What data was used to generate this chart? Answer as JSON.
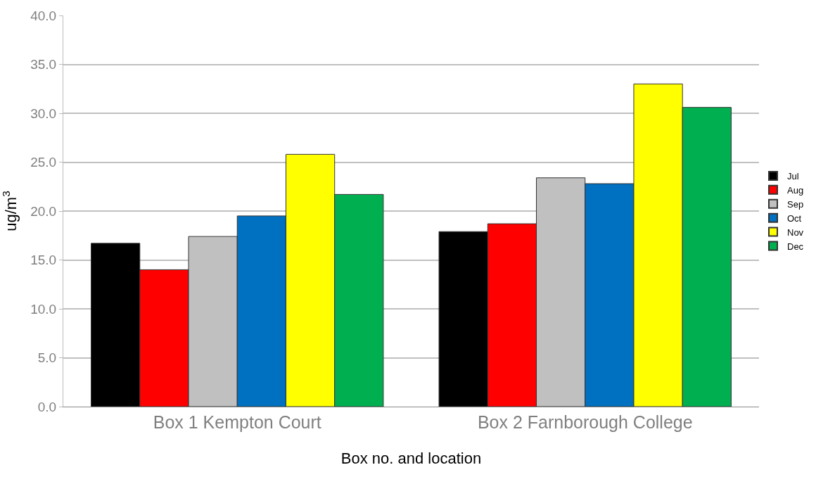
{
  "chart_data": {
    "type": "bar",
    "categories": [
      "Box 1 Kempton Court",
      "Box 2 Farnborough College"
    ],
    "series": [
      {
        "name": "Jul",
        "color": "#000000",
        "values": [
          16.7,
          17.9
        ]
      },
      {
        "name": "Aug",
        "color": "#ff0000",
        "values": [
          14.0,
          18.7
        ]
      },
      {
        "name": "Sep",
        "color": "#c0c0c0",
        "values": [
          17.4,
          23.4
        ]
      },
      {
        "name": "Oct",
        "color": "#0070c0",
        "values": [
          19.5,
          22.8
        ]
      },
      {
        "name": "Nov",
        "color": "#ffff00",
        "values": [
          25.8,
          33.0
        ]
      },
      {
        "name": "Dec",
        "color": "#00b050",
        "values": [
          21.7,
          30.6
        ]
      }
    ],
    "xlabel": "Box no. and location",
    "ylabel": "ug/m$^{3}$",
    "ylim": [
      0,
      40
    ],
    "yticks": [
      {
        "value": 0,
        "label": "0.0"
      },
      {
        "value": 5,
        "label": "5.0"
      },
      {
        "value": 10,
        "label": "10.0"
      },
      {
        "value": 15,
        "label": "15.0"
      },
      {
        "value": 20,
        "label": "20.0"
      },
      {
        "value": 25,
        "label": "25.0"
      },
      {
        "value": 30,
        "label": "30.0"
      },
      {
        "value": 35,
        "label": "35.0"
      },
      {
        "value": 40,
        "label": "40.0"
      }
    ],
    "grid": "y",
    "legend": "right"
  }
}
